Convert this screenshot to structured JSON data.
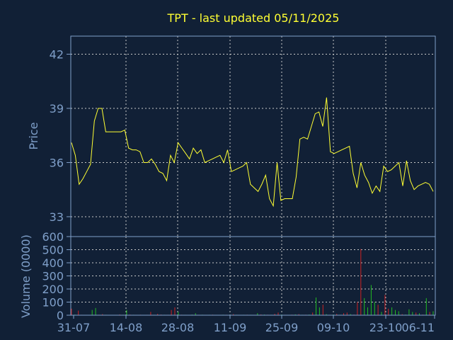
{
  "title": "TPT - last updated 05/11/2025",
  "colors": {
    "background": "#112036",
    "axis": "#7f9fc9",
    "title": "#ffff33",
    "price_line": "#ffff33",
    "volume_up": "#22bb22",
    "volume_down": "#cc2222",
    "grid": "#c8c8c8"
  },
  "chart_data": [
    {
      "type": "line",
      "title": "TPT - last updated 05/11/2025",
      "ylabel": "Price",
      "ylim": [
        31.9,
        43.0
      ],
      "yticks": [
        33,
        36,
        39,
        42
      ],
      "xticks": [
        "31-07",
        "14-08",
        "28-08",
        "11-09",
        "25-09",
        "09-10",
        "23-10",
        "06-11"
      ],
      "grid": true,
      "series": [
        {
          "values": [
            37.1,
            36.4,
            34.8,
            35.1,
            35.5,
            35.9,
            38.3,
            39.0,
            39.0,
            37.7,
            37.7,
            37.7,
            37.7,
            37.7,
            37.8,
            36.8,
            36.7,
            36.7,
            36.6,
            36.0,
            36.0,
            36.2,
            35.9,
            35.5,
            35.4,
            35.0,
            36.4,
            36.0,
            37.1,
            36.8,
            36.5,
            36.2,
            36.8,
            36.5,
            36.7,
            36.0,
            36.1,
            36.2,
            36.3,
            36.4,
            36.0,
            36.7,
            35.5,
            35.6,
            35.7,
            35.8,
            36.0,
            34.8,
            34.6,
            34.4,
            34.8,
            35.3,
            34.0,
            33.6,
            36.0,
            33.9,
            34.0,
            34.0,
            34.0,
            35.2,
            37.3,
            37.4,
            37.3,
            38.0,
            38.7,
            38.8,
            38.0,
            39.6,
            36.6,
            36.5,
            36.6,
            36.7,
            36.8,
            36.9,
            35.4,
            34.6,
            36.0,
            35.3,
            34.9,
            34.3,
            34.7,
            34.4,
            35.8,
            35.5,
            35.6,
            35.8,
            36.0,
            34.7,
            36.1,
            35.0,
            34.5,
            34.7,
            34.8,
            34.9,
            34.8,
            34.4
          ]
        }
      ]
    },
    {
      "type": "bar",
      "ylabel": "Volume (0000)",
      "ylim": [
        0,
        600
      ],
      "yticks": [
        0,
        100,
        200,
        300,
        400,
        500,
        600
      ],
      "series": [
        {
          "values": [
            50,
            5,
            35,
            3,
            2,
            1,
            40,
            55,
            4,
            8,
            3,
            2,
            1,
            2,
            6,
            3,
            40,
            5,
            3,
            2,
            4,
            2,
            3,
            25,
            3,
            10,
            5,
            3,
            3,
            40,
            60,
            25,
            4,
            3,
            2,
            5,
            15,
            3,
            4,
            2,
            3,
            4,
            2,
            2,
            4,
            3,
            3,
            8,
            3,
            2,
            3,
            4,
            3,
            2,
            15,
            6,
            5,
            4,
            3,
            10,
            20,
            5,
            3,
            2,
            4,
            6,
            8,
            3,
            4,
            5,
            20,
            135,
            60,
            80,
            8,
            3,
            5,
            10,
            3,
            15,
            20,
            8,
            5,
            100,
            505,
            130,
            60,
            230,
            100,
            80,
            25,
            155,
            50,
            60,
            40,
            30,
            8,
            5,
            45,
            25,
            20,
            15,
            5,
            130,
            25,
            30
          ],
          "directions": [
            "d",
            "u",
            "d",
            "d",
            "u",
            "d",
            "u",
            "u",
            "d",
            "d",
            "u",
            "d",
            "u",
            "d",
            "d",
            "u",
            "u",
            "d",
            "u",
            "d",
            "d",
            "u",
            "d",
            "d",
            "u",
            "d",
            "d",
            "u",
            "d",
            "d",
            "d",
            "u",
            "d",
            "u",
            "d",
            "u",
            "u",
            "d",
            "u",
            "d",
            "u",
            "d",
            "u",
            "d",
            "u",
            "d",
            "u",
            "d",
            "u",
            "d",
            "u",
            "d",
            "u",
            "d",
            "u",
            "d",
            "u",
            "d",
            "u",
            "d",
            "d",
            "u",
            "d",
            "u",
            "d",
            "u",
            "d",
            "u",
            "d",
            "u",
            "d",
            "u",
            "u",
            "d",
            "u",
            "d",
            "u",
            "d",
            "u",
            "d",
            "d",
            "u",
            "d",
            "d",
            "d",
            "u",
            "u",
            "u",
            "u",
            "d",
            "u",
            "d",
            "d",
            "u",
            "u",
            "u",
            "d",
            "u",
            "u",
            "u",
            "d",
            "u",
            "d",
            "u",
            "d",
            "u"
          ]
        }
      ]
    }
  ]
}
